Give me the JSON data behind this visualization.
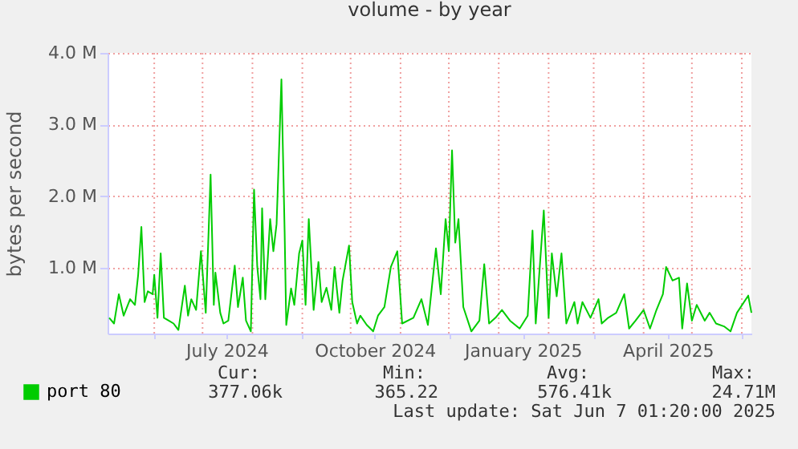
{
  "chart_data": {
    "type": "line",
    "title": "volume - by year",
    "ylabel": "bytes per second",
    "xlim": [
      "2024-05-03",
      "2025-06-07"
    ],
    "ylim": [
      0.08,
      4.0
    ],
    "yticks": [
      {
        "value": 1,
        "label": "1.0 M"
      },
      {
        "value": 2,
        "label": "2.0 M"
      },
      {
        "value": 3,
        "label": "3.0 M"
      },
      {
        "value": 4,
        "label": "4.0 M"
      }
    ],
    "xticks": [
      {
        "value": "2024-06-01",
        "label": null
      },
      {
        "value": "2024-07-01",
        "label": null
      },
      {
        "value": "2024-07-16",
        "label": "July 2024"
      },
      {
        "value": "2024-08-01",
        "label": null
      },
      {
        "value": "2024-09-01",
        "label": null
      },
      {
        "value": "2024-10-01",
        "label": null
      },
      {
        "value": "2024-10-16",
        "label": "October 2024"
      },
      {
        "value": "2024-11-01",
        "label": null
      },
      {
        "value": "2024-12-01",
        "label": null
      },
      {
        "value": "2025-01-01",
        "label": null
      },
      {
        "value": "2025-01-16",
        "label": "January 2025"
      },
      {
        "value": "2025-02-01",
        "label": null
      },
      {
        "value": "2025-03-01",
        "label": null
      },
      {
        "value": "2025-04-01",
        "label": null
      },
      {
        "value": "2025-04-16",
        "label": "April 2025"
      },
      {
        "value": "2025-05-01",
        "label": null
      },
      {
        "value": "2025-06-01",
        "label": null
      }
    ],
    "grid": true,
    "legend": "bottom left",
    "x": [
      "2024-05-04",
      "2024-05-07",
      "2024-05-10",
      "2024-05-13",
      "2024-05-17",
      "2024-05-20",
      "2024-05-22",
      "2024-05-24",
      "2024-05-26",
      "2024-05-28",
      "2024-05-31",
      "2024-06-01",
      "2024-06-03",
      "2024-06-05",
      "2024-06-07",
      "2024-06-10",
      "2024-06-13",
      "2024-06-16",
      "2024-06-20",
      "2024-06-22",
      "2024-06-24",
      "2024-06-27",
      "2024-06-30",
      "2024-07-03",
      "2024-07-06",
      "2024-07-08",
      "2024-07-09",
      "2024-07-12",
      "2024-07-14",
      "2024-07-17",
      "2024-07-21",
      "2024-07-23",
      "2024-07-26",
      "2024-07-28",
      "2024-07-31",
      "2024-08-02",
      "2024-08-04",
      "2024-08-06",
      "2024-08-07",
      "2024-08-09",
      "2024-08-12",
      "2024-08-14",
      "2024-08-16",
      "2024-08-19",
      "2024-08-21",
      "2024-08-22",
      "2024-08-25",
      "2024-08-27",
      "2024-08-30",
      "2024-09-01",
      "2024-09-03",
      "2024-09-05",
      "2024-09-08",
      "2024-09-11",
      "2024-09-13",
      "2024-09-16",
      "2024-09-19",
      "2024-09-21",
      "2024-09-24",
      "2024-09-26",
      "2024-09-30",
      "2024-10-02",
      "2024-10-05",
      "2024-10-07",
      "2024-10-11",
      "2024-10-15",
      "2024-10-18",
      "2024-10-22",
      "2024-10-26",
      "2024-10-30",
      "2024-11-02",
      "2024-11-09",
      "2024-11-14",
      "2024-11-18",
      "2024-11-23",
      "2024-11-26",
      "2024-11-29",
      "2024-12-01",
      "2024-12-03",
      "2024-12-05",
      "2024-12-07",
      "2024-12-10",
      "2024-12-15",
      "2024-12-20",
      "2024-12-23",
      "2024-12-26",
      "2024-12-30",
      "2025-01-03",
      "2025-01-08",
      "2025-01-14",
      "2025-01-19",
      "2025-01-22",
      "2025-01-24",
      "2025-01-29",
      "2025-02-01",
      "2025-02-03",
      "2025-02-06",
      "2025-02-09",
      "2025-02-12",
      "2025-02-17",
      "2025-02-19",
      "2025-02-22",
      "2025-02-27",
      "2025-03-04",
      "2025-03-06",
      "2025-03-10",
      "2025-03-15",
      "2025-03-20",
      "2025-03-23",
      "2025-03-27",
      "2025-04-01",
      "2025-04-05",
      "2025-04-09",
      "2025-04-13",
      "2025-04-15",
      "2025-04-19",
      "2025-04-23",
      "2025-04-25",
      "2025-04-28",
      "2025-05-01",
      "2025-05-04",
      "2025-05-09",
      "2025-05-12",
      "2025-05-16",
      "2025-05-21",
      "2025-05-25",
      "2025-05-29",
      "2025-06-05",
      "2025-06-07"
    ],
    "series": [
      {
        "name": "port 80",
        "color": "#00cc00",
        "values": [
          0.3,
          0.22,
          0.63,
          0.33,
          0.56,
          0.48,
          0.9,
          1.57,
          0.52,
          0.67,
          0.63,
          0.9,
          0.3,
          1.2,
          0.3,
          0.26,
          0.22,
          0.13,
          0.75,
          0.33,
          0.56,
          0.41,
          1.23,
          0.37,
          2.3,
          0.48,
          0.93,
          0.37,
          0.22,
          0.26,
          1.03,
          0.45,
          0.86,
          0.26,
          0.11,
          2.09,
          1.01,
          0.56,
          1.83,
          0.56,
          1.68,
          1.23,
          1.61,
          3.63,
          1.5,
          0.2,
          0.71,
          0.48,
          1.2,
          1.38,
          0.48,
          1.68,
          0.41,
          1.08,
          0.52,
          0.72,
          0.41,
          1.01,
          0.37,
          0.82,
          1.31,
          0.52,
          0.22,
          0.33,
          0.2,
          0.11,
          0.33,
          0.45,
          1.01,
          1.23,
          0.22,
          0.3,
          0.56,
          0.2,
          1.27,
          0.63,
          1.68,
          1.23,
          2.64,
          1.35,
          1.68,
          0.45,
          0.11,
          0.26,
          1.05,
          0.22,
          0.3,
          0.41,
          0.26,
          0.15,
          0.33,
          1.52,
          0.22,
          1.8,
          0.3,
          1.2,
          0.6,
          1.2,
          0.22,
          0.52,
          0.22,
          0.52,
          0.3,
          0.56,
          0.22,
          0.3,
          0.37,
          0.63,
          0.15,
          0.26,
          0.41,
          0.15,
          0.41,
          0.63,
          1.01,
          0.82,
          0.86,
          0.15,
          0.78,
          0.26,
          0.48,
          0.26,
          0.37,
          0.22,
          0.18,
          0.11,
          0.37,
          0.61,
          0.37
        ]
      }
    ],
    "annotations": [
      "Cur:",
      "377.06k",
      "Min:",
      "365.22",
      "Avg:",
      "576.41k",
      "Max:",
      "24.71M",
      "Last update: Sat Jun  7 01:20:00 2025"
    ]
  }
}
